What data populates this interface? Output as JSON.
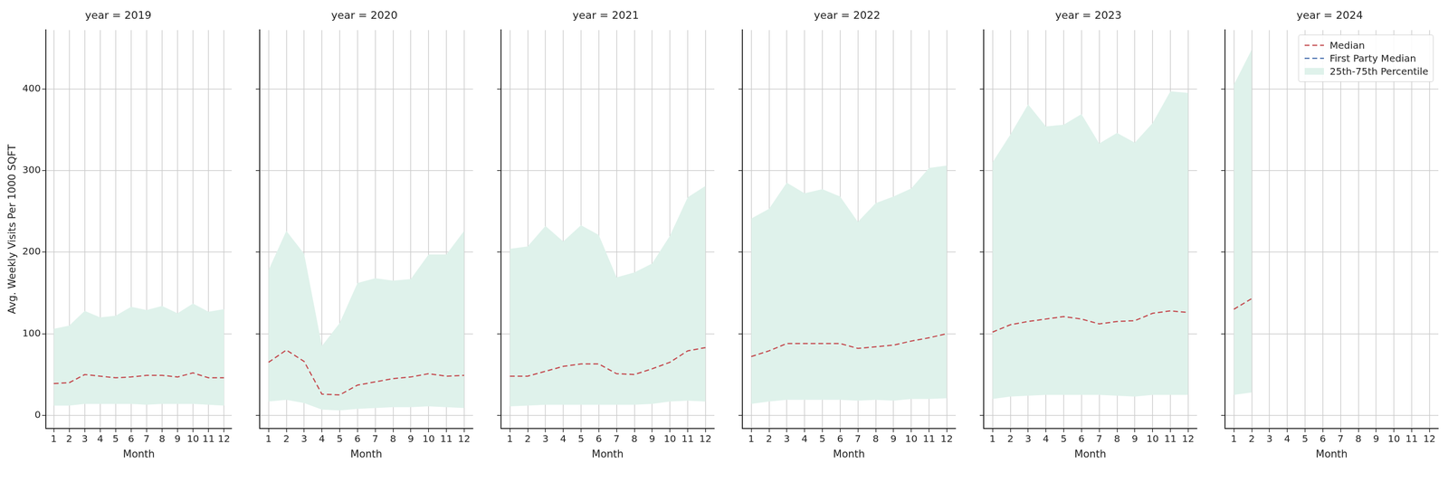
{
  "chart_data": [
    {
      "type": "line",
      "title": "year = 2019",
      "x_label": "Month",
      "y_label": "Avg. Weekly Visits Per 1000 SQFT",
      "x": [
        1,
        2,
        3,
        4,
        5,
        6,
        7,
        8,
        9,
        10,
        11,
        12
      ],
      "xlim": [
        0.5,
        12.5
      ],
      "xticks": [
        1,
        2,
        3,
        4,
        5,
        6,
        7,
        8,
        9,
        10,
        11,
        12
      ],
      "ylim": [
        -16,
        472
      ],
      "yticks": [
        0,
        100,
        200,
        300,
        400
      ],
      "grid": true,
      "series": [
        {
          "name": "25th-75th Percentile",
          "type": "band",
          "color": "#dff2eb",
          "low": [
            12,
            12,
            14,
            14,
            14,
            14,
            13,
            14,
            14,
            14,
            13,
            12
          ],
          "high": [
            106,
            110,
            128,
            120,
            122,
            133,
            129,
            134,
            125,
            137,
            127,
            130
          ]
        },
        {
          "name": "Median",
          "color": "#c44e52",
          "line_style": "dashed",
          "values": [
            39,
            40,
            50,
            48,
            46,
            47,
            49,
            49,
            47,
            52,
            46,
            46
          ]
        },
        {
          "name": "First Party Median",
          "color": "#4c72b0",
          "line_style": "dashed",
          "values": [
            null,
            null,
            null,
            null,
            null,
            null,
            null,
            null,
            null,
            null,
            null,
            null
          ]
        }
      ]
    },
    {
      "type": "line",
      "title": "year = 2020",
      "x_label": "Month",
      "tick_labels": "x",
      "x": [
        1,
        2,
        3,
        4,
        5,
        6,
        7,
        8,
        9,
        10,
        11,
        12
      ],
      "xlim": [
        0.5,
        12.5
      ],
      "xticks": [
        1,
        2,
        3,
        4,
        5,
        6,
        7,
        8,
        9,
        10,
        11,
        12
      ],
      "ylim": [
        -16,
        472
      ],
      "yticks": [
        0,
        100,
        200,
        300,
        400
      ],
      "grid": true,
      "series": [
        {
          "name": "25th-75th Percentile",
          "type": "band",
          "color": "#dff2eb",
          "low": [
            17,
            19,
            15,
            7,
            6,
            8,
            9,
            10,
            10,
            11,
            10,
            9
          ],
          "high": [
            178,
            226,
            198,
            85,
            113,
            162,
            168,
            165,
            167,
            197,
            197,
            226
          ]
        },
        {
          "name": "Median",
          "color": "#c44e52",
          "line_style": "dashed",
          "values": [
            65,
            80,
            66,
            26,
            25,
            37,
            41,
            45,
            47,
            51,
            48,
            49
          ]
        },
        {
          "name": "First Party Median",
          "color": "#4c72b0",
          "line_style": "dashed",
          "values": [
            null,
            null,
            null,
            null,
            null,
            null,
            null,
            null,
            null,
            null,
            null,
            null
          ]
        }
      ]
    },
    {
      "type": "line",
      "title": "year = 2021",
      "x_label": "Month",
      "tick_labels": "x",
      "x": [
        1,
        2,
        3,
        4,
        5,
        6,
        7,
        8,
        9,
        10,
        11,
        12
      ],
      "xlim": [
        0.5,
        12.5
      ],
      "xticks": [
        1,
        2,
        3,
        4,
        5,
        6,
        7,
        8,
        9,
        10,
        11,
        12
      ],
      "ylim": [
        -16,
        472
      ],
      "yticks": [
        0,
        100,
        200,
        300,
        400
      ],
      "grid": true,
      "series": [
        {
          "name": "25th-75th Percentile",
          "type": "band",
          "color": "#dff2eb",
          "low": [
            11,
            12,
            13,
            13,
            13,
            13,
            13,
            13,
            14,
            17,
            18,
            17
          ],
          "high": [
            204,
            207,
            232,
            213,
            233,
            221,
            169,
            175,
            186,
            220,
            267,
            281
          ]
        },
        {
          "name": "Median",
          "color": "#c44e52",
          "line_style": "dashed",
          "values": [
            48,
            48,
            54,
            60,
            63,
            63,
            51,
            50,
            57,
            65,
            79,
            83
          ]
        },
        {
          "name": "First Party Median",
          "color": "#4c72b0",
          "line_style": "dashed",
          "values": [
            null,
            null,
            null,
            null,
            null,
            null,
            null,
            null,
            null,
            null,
            null,
            null
          ]
        }
      ]
    },
    {
      "type": "line",
      "title": "year = 2022",
      "x_label": "Month",
      "tick_labels": "x",
      "x": [
        1,
        2,
        3,
        4,
        5,
        6,
        7,
        8,
        9,
        10,
        11,
        12
      ],
      "xlim": [
        0.5,
        12.5
      ],
      "xticks": [
        1,
        2,
        3,
        4,
        5,
        6,
        7,
        8,
        9,
        10,
        11,
        12
      ],
      "ylim": [
        -16,
        472
      ],
      "yticks": [
        0,
        100,
        200,
        300,
        400
      ],
      "grid": true,
      "series": [
        {
          "name": "25th-75th Percentile",
          "type": "band",
          "color": "#dff2eb",
          "low": [
            14,
            17,
            19,
            19,
            19,
            19,
            18,
            19,
            18,
            20,
            20,
            21
          ],
          "high": [
            241,
            253,
            285,
            272,
            277,
            268,
            237,
            260,
            268,
            278,
            303,
            306
          ]
        },
        {
          "name": "Median",
          "color": "#c44e52",
          "line_style": "dashed",
          "values": [
            72,
            79,
            88,
            88,
            88,
            88,
            82,
            84,
            86,
            91,
            95,
            100
          ]
        },
        {
          "name": "First Party Median",
          "color": "#4c72b0",
          "line_style": "dashed",
          "values": [
            null,
            null,
            null,
            null,
            null,
            null,
            null,
            null,
            null,
            null,
            null,
            null
          ]
        }
      ]
    },
    {
      "type": "line",
      "title": "year = 2023",
      "x_label": "Month",
      "tick_labels": "x",
      "x": [
        1,
        2,
        3,
        4,
        5,
        6,
        7,
        8,
        9,
        10,
        11,
        12
      ],
      "xlim": [
        0.5,
        12.5
      ],
      "xticks": [
        1,
        2,
        3,
        4,
        5,
        6,
        7,
        8,
        9,
        10,
        11,
        12
      ],
      "ylim": [
        -16,
        472
      ],
      "yticks": [
        0,
        100,
        200,
        300,
        400
      ],
      "grid": true,
      "series": [
        {
          "name": "25th-75th Percentile",
          "type": "band",
          "color": "#dff2eb",
          "low": [
            20,
            23,
            24,
            25,
            25,
            25,
            25,
            24,
            23,
            25,
            25,
            25
          ],
          "high": [
            310,
            344,
            381,
            354,
            356,
            369,
            333,
            346,
            334,
            358,
            397,
            395
          ]
        },
        {
          "name": "Median",
          "color": "#c44e52",
          "line_style": "dashed",
          "values": [
            102,
            111,
            115,
            118,
            121,
            118,
            112,
            115,
            116,
            125,
            128,
            126
          ]
        },
        {
          "name": "First Party Median",
          "color": "#4c72b0",
          "line_style": "dashed",
          "values": [
            null,
            null,
            null,
            null,
            null,
            null,
            null,
            null,
            null,
            null,
            null,
            null
          ]
        }
      ]
    },
    {
      "type": "line",
      "title": "year = 2024",
      "x_label": "Month",
      "tick_labels": "x",
      "legend": "upper right",
      "x": [
        1,
        2,
        3,
        4,
        5,
        6,
        7,
        8,
        9,
        10,
        11,
        12
      ],
      "xlim": [
        0.5,
        12.5
      ],
      "xticks": [
        1,
        2,
        3,
        4,
        5,
        6,
        7,
        8,
        9,
        10,
        11,
        12
      ],
      "ylim": [
        -16,
        472
      ],
      "yticks": [
        0,
        100,
        200,
        300,
        400
      ],
      "grid": true,
      "series": [
        {
          "name": "25th-75th Percentile",
          "type": "band",
          "color": "#dff2eb",
          "low": [
            25,
            28,
            null,
            null,
            null,
            null,
            null,
            null,
            null,
            null,
            null,
            null
          ],
          "high": [
            405,
            448,
            null,
            null,
            null,
            null,
            null,
            null,
            null,
            null,
            null,
            null
          ]
        },
        {
          "name": "Median",
          "color": "#c44e52",
          "line_style": "dashed",
          "values": [
            130,
            143,
            null,
            null,
            null,
            null,
            null,
            null,
            null,
            null,
            null,
            null
          ]
        },
        {
          "name": "First Party Median",
          "color": "#4c72b0",
          "line_style": "dashed",
          "values": [
            null,
            null,
            null,
            null,
            null,
            null,
            null,
            null,
            null,
            null,
            null,
            null
          ]
        }
      ]
    }
  ]
}
